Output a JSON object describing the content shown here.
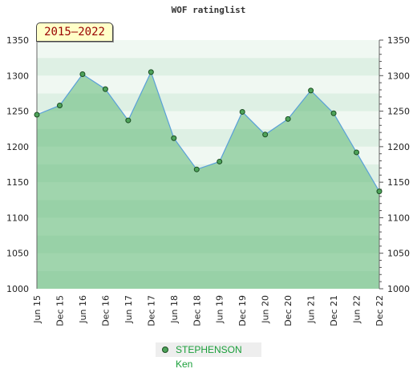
{
  "chart_data": {
    "type": "area",
    "title": "WOF ratinglist",
    "period_label": "2015–2022",
    "categories": [
      "Jun 15",
      "Dec 15",
      "Jun 16",
      "Dec 16",
      "Jun 17",
      "Dec 17",
      "Jun 18",
      "Dec 18",
      "Jun 19",
      "Dec 19",
      "Jun 20",
      "Dec 20",
      "Jun 21",
      "Dec 21",
      "Jun 22",
      "Dec 22"
    ],
    "series": [
      {
        "name": "STEPHENSON Ken",
        "values": [
          1245,
          1258,
          1302,
          1281,
          1237,
          1305,
          1212,
          1168,
          1179,
          1249,
          1217,
          1239,
          1279,
          1247,
          1192,
          1137
        ]
      }
    ],
    "ylim": [
      1000,
      1350
    ],
    "yticks": [
      1000,
      1050,
      1100,
      1150,
      1200,
      1250,
      1300,
      1350
    ],
    "xlabel": "",
    "ylabel": "",
    "grid": true,
    "legend_position": "bottom-center",
    "colors": {
      "line": "#5aa0d8",
      "area": "#5fb874",
      "point": "#4ea35a",
      "legend_text": "#1a9f3a"
    }
  }
}
